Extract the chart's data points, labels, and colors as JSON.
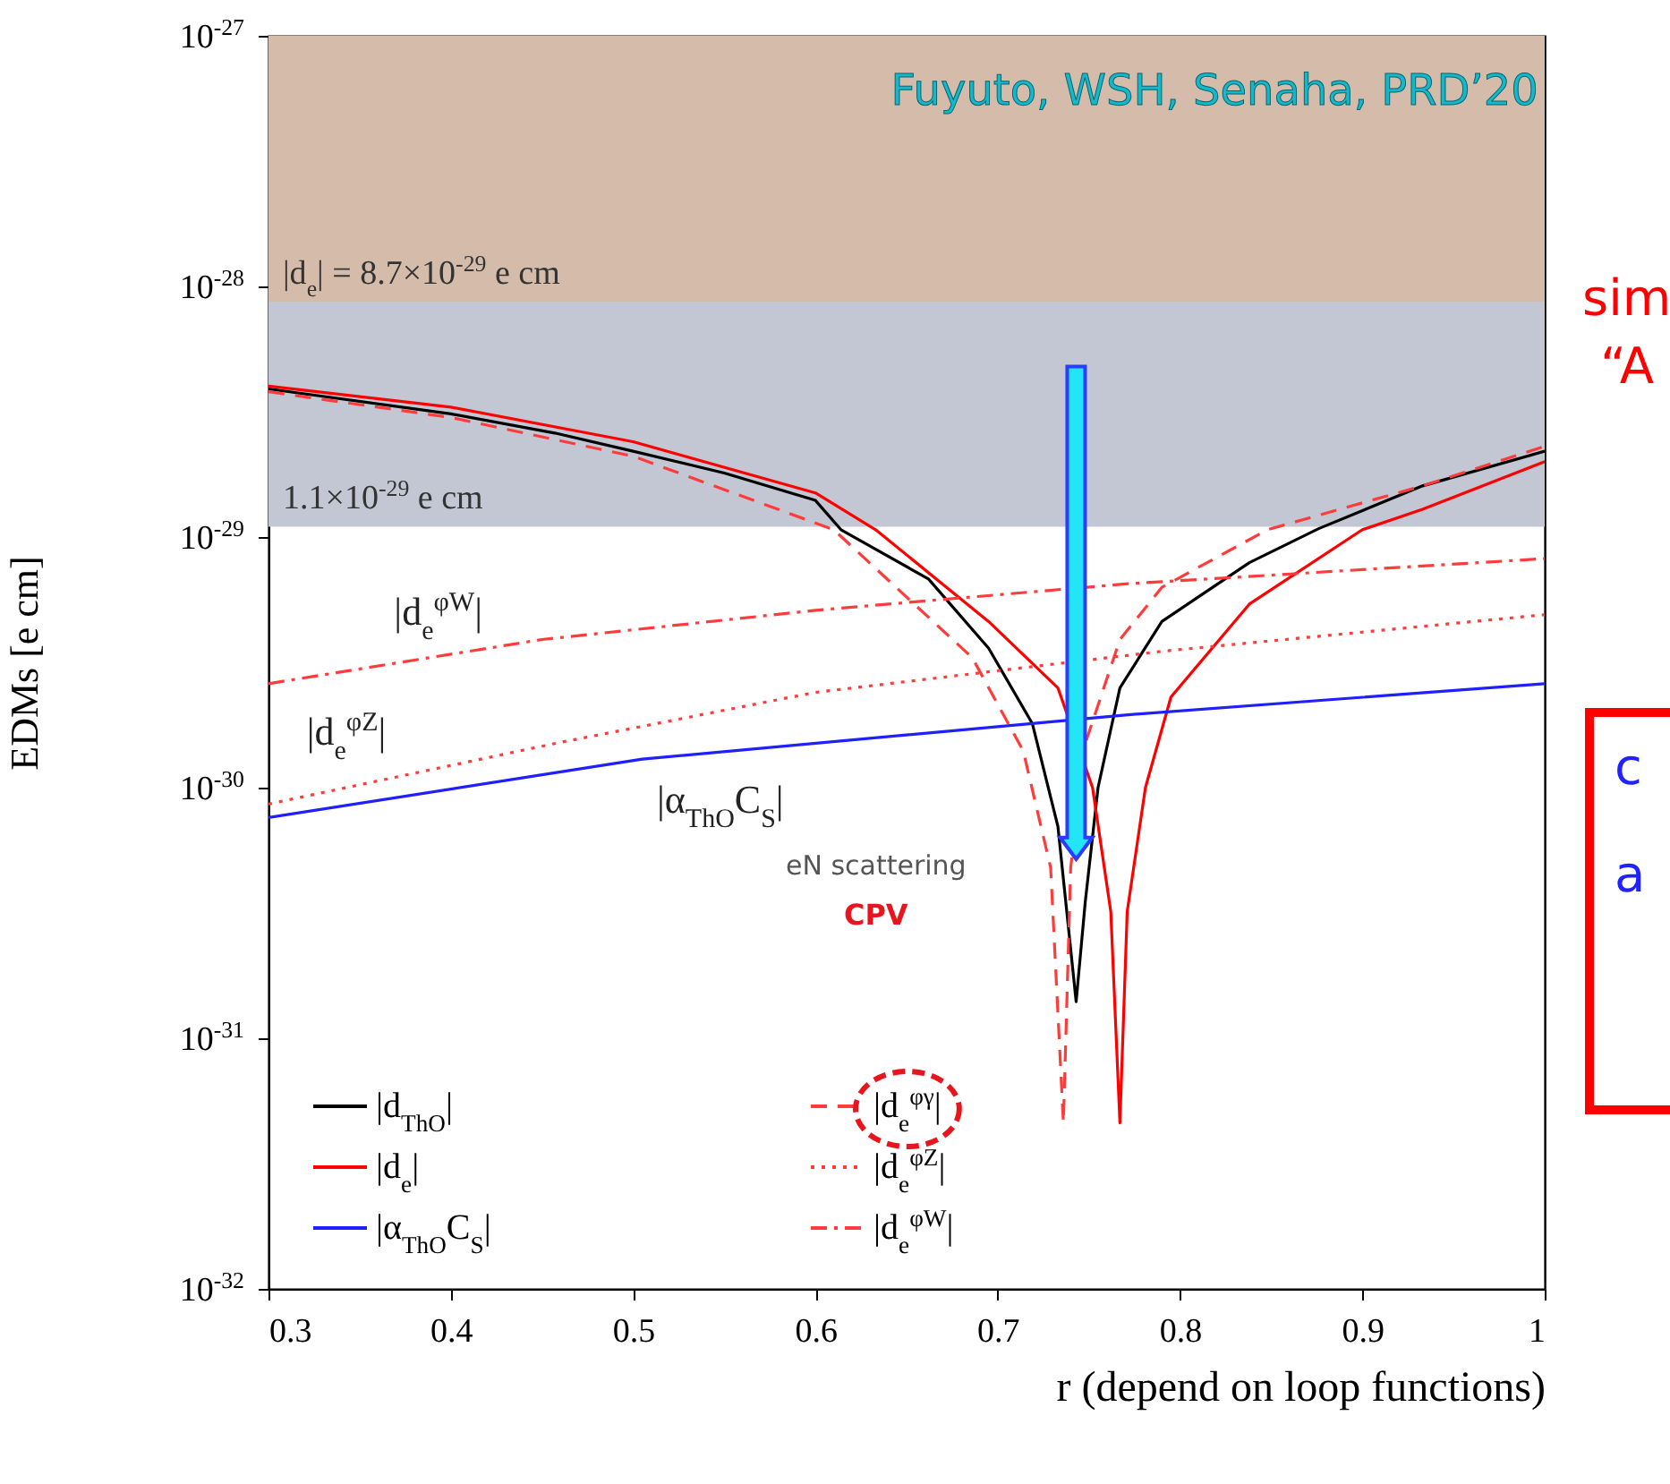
{
  "chart_data": {
    "type": "line",
    "xlabel": "r (depend on loop functions)",
    "ylabel": "EDMs [e cm]",
    "log": "y",
    "xlim": [
      0.3,
      1.0
    ],
    "xticks": [
      0.3,
      0.4,
      0.5,
      0.6,
      0.7,
      0.8,
      0.9,
      1
    ],
    "ylim": [
      1e-32,
      1e-27
    ],
    "yticks": [
      {
        "value": 1e-32,
        "label": "10$^{-32}$"
      },
      {
        "value": 1e-31,
        "label": "10$^{-31}$"
      },
      {
        "value": 1e-30,
        "label": "10$^{-30}$"
      },
      {
        "value": 1e-29,
        "label": "10$^{-29}$"
      },
      {
        "value": 1e-28,
        "label": "10$^{-28}$"
      },
      {
        "value": 1e-27,
        "label": "10$^{-27}$"
      }
    ],
    "grid": false,
    "legend": "bottom left",
    "series": [
      {
        "name": "|d$_{ThO}$|",
        "color": "#000000",
        "line_style": "solid",
        "x": [
          0.3,
          0.4,
          0.457,
          0.5,
          0.55,
          0.6,
          0.614,
          0.662,
          0.695,
          0.719,
          0.733,
          0.743,
          0.748,
          0.755,
          0.767,
          0.79,
          0.838,
          0.876,
          0.933,
          1.0
        ],
        "values": [
          3.9e-29,
          3.1e-29,
          2.6e-29,
          2.2e-29,
          1.8e-29,
          1.4e-29,
          1.07e-29,
          6.8e-30,
          3.6e-30,
          1.8e-30,
          7e-31,
          1.4e-31,
          3.5e-31,
          1e-30,
          2.5e-30,
          4.6e-30,
          7.9e-30,
          1.08e-29,
          1.6e-29,
          2.2e-29
        ]
      },
      {
        "name": "|d$_{e}$|",
        "color": "#ff0000",
        "line_style": "solid",
        "x": [
          0.3,
          0.4,
          0.5,
          0.6,
          0.633,
          0.695,
          0.733,
          0.752,
          0.762,
          0.767,
          0.771,
          0.781,
          0.795,
          0.838,
          0.9,
          0.933,
          1.0
        ],
        "values": [
          4e-29,
          3.3e-29,
          2.4e-29,
          1.5e-29,
          1.07e-29,
          4.6e-30,
          2.5e-30,
          1e-30,
          3.2e-31,
          4.6e-32,
          3.2e-31,
          1e-30,
          2.3e-30,
          5.4e-30,
          1.07e-29,
          1.29e-29,
          2e-29
        ]
      },
      {
        "name": "|α$_{ThO}$C$_{S}$|",
        "color": "#1f1fff",
        "line_style": "solid",
        "x": [
          0.3,
          0.505,
          0.77,
          1.0
        ],
        "values": [
          7.6e-31,
          1.3e-30,
          1.95e-30,
          2.6e-30
        ]
      },
      {
        "name": "|d$_{e}$$^{φγ}$|",
        "color": "#ff3b3b",
        "line_style": "dashed",
        "x": [
          0.3,
          0.4,
          0.5,
          0.61,
          0.686,
          0.714,
          0.729,
          0.736,
          0.74,
          0.748,
          0.767,
          0.79,
          0.848,
          0.933,
          1.0
        ],
        "values": [
          3.8e-29,
          3e-29,
          2.1e-29,
          1.07e-29,
          3.3e-30,
          1.4e-30,
          4.8e-31,
          4.6e-32,
          4.8e-31,
          1.5e-30,
          3.9e-30,
          6.3e-30,
          1.07e-29,
          1.6e-29,
          2.3e-29
        ]
      },
      {
        "name": "|d$_{e}$$^{φZ}$|",
        "color": "#ff3b3b",
        "line_style": "dotted",
        "x": [
          0.3,
          0.457,
          0.6,
          0.79,
          1.0
        ],
        "values": [
          8.6e-31,
          1.5e-30,
          2.4e-30,
          3.5e-30,
          4.9e-30
        ]
      },
      {
        "name": "|d$_{e}$$^{φW}$|",
        "color": "#ff3b3b",
        "line_style": "dashdot",
        "x": [
          0.3,
          0.45,
          0.6,
          0.77,
          1.0
        ],
        "values": [
          2.6e-30,
          3.9e-30,
          5.1e-30,
          6.5e-30,
          8.2e-30
        ]
      }
    ],
    "bands": [
      {
        "axis": "y",
        "from": 1.1e-29,
        "to": 8.7e-29,
        "label": "1.1×10$^{-29}$ e cm",
        "color": "#c3c7d3"
      },
      {
        "axis": "y",
        "from": 8.7e-29,
        "to": 1e-27,
        "label": "|d$_{e}$| = 8.7×10$^{-29}$ e cm",
        "color": "#d5bcaa"
      }
    ],
    "annotations": [
      "Fuyuto, WSH, Senaha, PRD’20",
      "|d$_{e}$$^{φW}$|",
      "|d$_{e}$$^{φZ}$|",
      "|α$_{ThO}$C$_{S}$|",
      "eN scattering",
      "CPV",
      "sim",
      "“A",
      "c",
      "a"
    ]
  }
}
